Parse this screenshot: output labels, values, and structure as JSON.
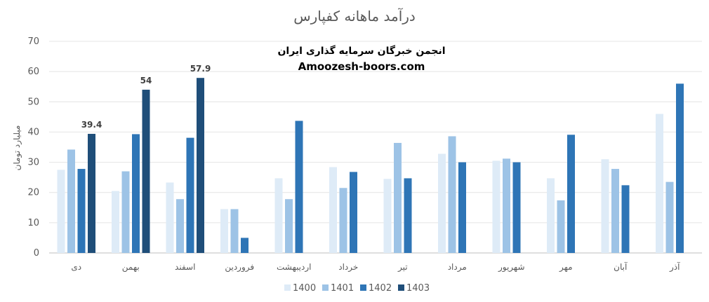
{
  "chart_data": {
    "type": "bar",
    "title": "درآمد ماهانه کفپارس",
    "ylabel": "میلیارد تومان",
    "xlabel": "",
    "ylim": [
      0,
      70
    ],
    "yticks": [
      0,
      10,
      20,
      30,
      40,
      50,
      60,
      70
    ],
    "grid": true,
    "legend": "bottom",
    "categories": [
      "دی",
      "بهمن",
      "اسفند",
      "فروردین",
      "اردیبهشت",
      "خرداد",
      "تیر",
      "مرداد",
      "شهریور",
      "مهر",
      "آبان",
      "آذر"
    ],
    "series": [
      {
        "name": "1400",
        "color": "#deebf7",
        "values": [
          27.5,
          20.5,
          23.3,
          14.5,
          24.7,
          28.4,
          24.5,
          32.8,
          30.5,
          24.7,
          31.0,
          46.0
        ]
      },
      {
        "name": "1401",
        "color": "#9dc3e6",
        "values": [
          34.2,
          27.0,
          17.8,
          14.5,
          17.8,
          21.5,
          36.4,
          38.6,
          31.2,
          17.4,
          27.8,
          23.5
        ]
      },
      {
        "name": "1402",
        "color": "#2e75b6",
        "values": [
          27.8,
          39.3,
          38.1,
          5.0,
          43.7,
          26.8,
          24.7,
          30.0,
          30.0,
          39.1,
          22.4,
          56.0
        ]
      },
      {
        "name": "1403",
        "color": "#1f4e79",
        "values": [
          39.4,
          54,
          57.9,
          null,
          null,
          null,
          null,
          null,
          null,
          null,
          null,
          null
        ]
      }
    ],
    "data_labels": [
      {
        "series": "1403",
        "category": "دی",
        "text": "39.4"
      },
      {
        "series": "1403",
        "category": "بهمن",
        "text": "54"
      },
      {
        "series": "1403",
        "category": "اسفند",
        "text": "57.9"
      }
    ]
  },
  "watermark": {
    "line1": "انجمن خبرگان سرمایه گذاری ایران",
    "line2": "Amoozesh-boors.com"
  }
}
